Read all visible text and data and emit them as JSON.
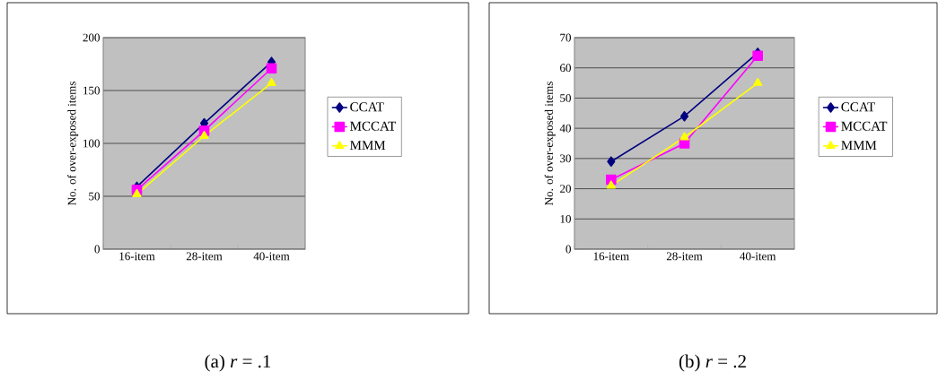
{
  "chart_data": [
    {
      "type": "line",
      "title": "(a) *r* = .1",
      "ylabel": "No. of over-exposed items",
      "categories": [
        "16-item",
        "28-item",
        "40-item"
      ],
      "series": [
        {
          "name": "CCAT",
          "color": "#000080",
          "marker": "diamond",
          "values": [
            59,
            119,
            177
          ]
        },
        {
          "name": "MCCAT",
          "color": "#ff00ff",
          "marker": "square",
          "values": [
            56,
            112,
            171
          ]
        },
        {
          "name": "MMM",
          "color": "#ffff00",
          "marker": "triangle",
          "values": [
            52,
            107,
            157
          ]
        }
      ],
      "ylim": [
        0,
        200
      ],
      "yticks": [
        0,
        50,
        100,
        150,
        200
      ],
      "grid": "y",
      "legend": "right"
    },
    {
      "type": "line",
      "title": "(b) *r* = .2",
      "ylabel": "No. of over-exposed items",
      "categories": [
        "16-item",
        "28-item",
        "40-item"
      ],
      "series": [
        {
          "name": "CCAT",
          "color": "#000080",
          "marker": "diamond",
          "values": [
            29,
            44,
            65
          ]
        },
        {
          "name": "MCCAT",
          "color": "#ff00ff",
          "marker": "square",
          "values": [
            23,
            35,
            64
          ]
        },
        {
          "name": "MMM",
          "color": "#ffff00",
          "marker": "triangle",
          "values": [
            21,
            37,
            55
          ]
        }
      ],
      "ylim": [
        0,
        70
      ],
      "yticks": [
        0,
        10,
        20,
        30,
        40,
        50,
        60,
        70
      ],
      "grid": "y",
      "legend": "right"
    }
  ]
}
